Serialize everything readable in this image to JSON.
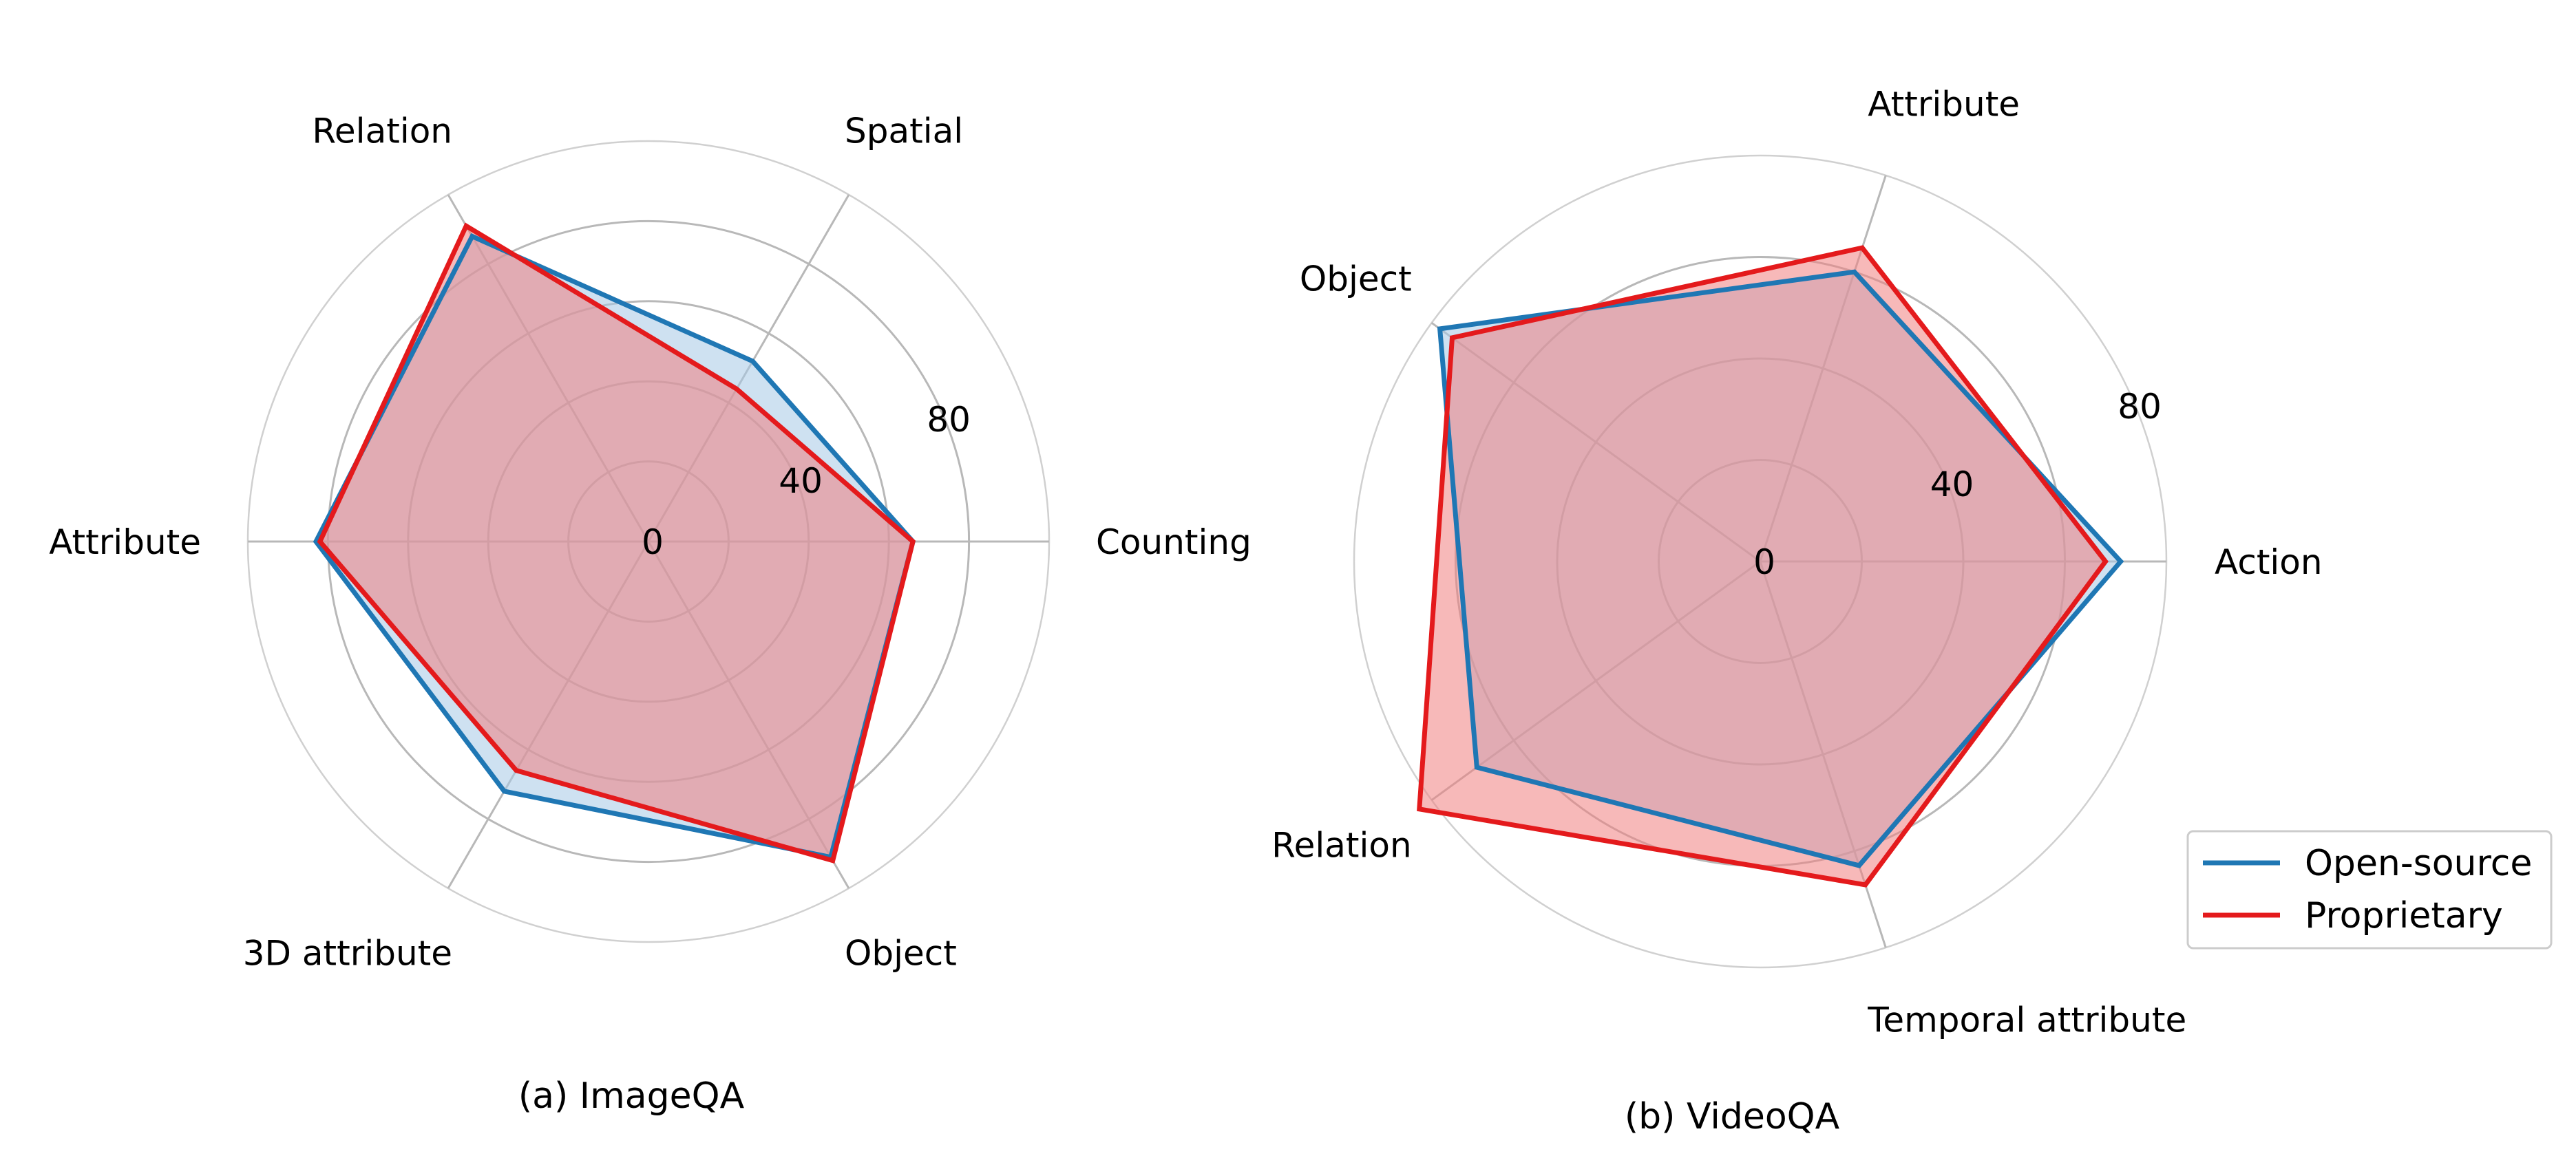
{
  "chart_data": [
    {
      "type": "radar",
      "caption": "(a) ImageQA",
      "categories": [
        "Counting",
        "Spatial",
        "Relation",
        "Attribute",
        "3D attribute",
        "Object"
      ],
      "rlim": [
        0,
        100
      ],
      "rticks": [
        0,
        40,
        80
      ],
      "grid": true,
      "series": [
        {
          "name": "Open-source",
          "values": [
            66,
            52,
            88,
            83,
            72,
            91
          ]
        },
        {
          "name": "Proprietary",
          "values": [
            66,
            44,
            91,
            82,
            66,
            92
          ]
        }
      ]
    },
    {
      "type": "radar",
      "caption": "(b) VideoQA",
      "categories": [
        "Action",
        "Attribute",
        "Object",
        "Relation",
        "Temporal attribute"
      ],
      "rlim": [
        0,
        80
      ],
      "rticks": [
        0,
        40,
        80
      ],
      "grid": true,
      "series": [
        {
          "name": "Open-source",
          "values": [
            71,
            60,
            78,
            69,
            63
          ]
        },
        {
          "name": "Proprietary",
          "values": [
            68,
            65,
            75,
            83,
            67
          ]
        }
      ]
    }
  ],
  "legend": {
    "placement": "bottom-right",
    "items": [
      {
        "label": "Open-source",
        "color": "#1f77b4"
      },
      {
        "label": "Proprietary",
        "color": "#e41a1c"
      }
    ]
  },
  "colors": {
    "open_source": "#1f77b4",
    "proprietary": "#e41a1c",
    "proprietary_fill": "#f08080",
    "open_source_fill": "#a6c8e6",
    "grid": "#b0b0b0"
  }
}
